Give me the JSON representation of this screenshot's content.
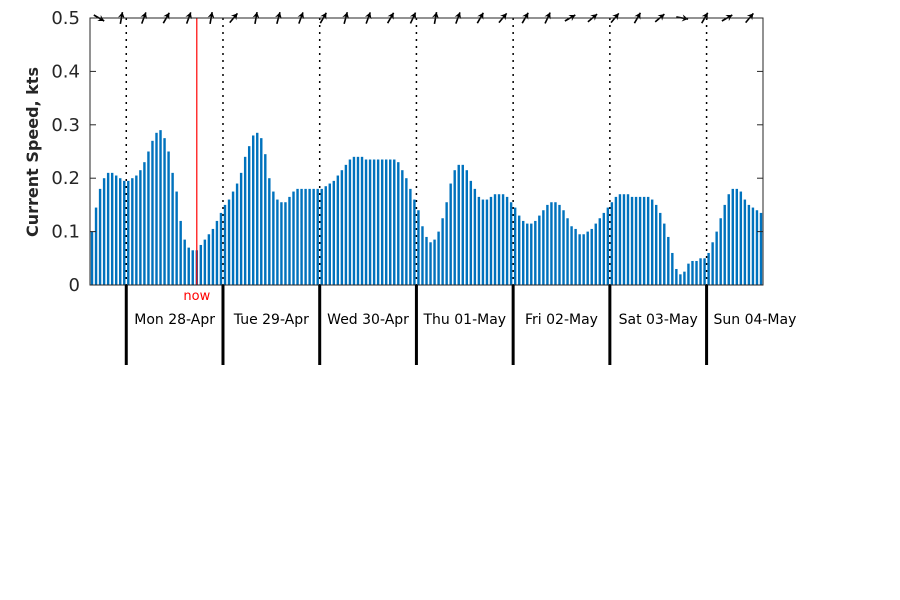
{
  "chart_data": {
    "type": "bar",
    "title": "",
    "xlabel": "",
    "ylabel": "Current Speed, kts",
    "ylim": [
      0,
      0.5
    ],
    "yticks": [
      0,
      0.1,
      0.2,
      0.3,
      0.4,
      0.5
    ],
    "ytick_labels": [
      "0",
      "0.1",
      "0.2",
      "0.3",
      "0.4",
      "0.5"
    ],
    "bar_color": "#0072BD",
    "now_color": "#ff0000",
    "samples_per_day": 24,
    "start_offset_samples": 9,
    "day_labels": [
      "Mon 28-Apr",
      "Tue 29-Apr",
      "Wed 30-Apr",
      "Thu 01-May",
      "Fri 02-May",
      "Sat 03-May",
      "Sun 04-May"
    ],
    "now_label": "now",
    "now_sample": 26.5,
    "direction_arrows_deg": [
      30,
      280,
      290,
      300,
      290,
      280,
      310,
      280,
      285,
      290,
      300,
      285,
      290,
      300,
      295,
      280,
      290,
      300,
      310,
      300,
      295,
      330,
      320,
      310,
      300,
      320,
      10,
      300,
      330,
      310
    ],
    "values": [
      0.1,
      0.145,
      0.18,
      0.2,
      0.21,
      0.21,
      0.205,
      0.2,
      0.195,
      0.195,
      0.2,
      0.205,
      0.215,
      0.23,
      0.25,
      0.27,
      0.285,
      0.29,
      0.275,
      0.25,
      0.21,
      0.175,
      0.12,
      0.085,
      0.07,
      0.065,
      0.065,
      0.075,
      0.085,
      0.095,
      0.105,
      0.12,
      0.135,
      0.15,
      0.16,
      0.175,
      0.19,
      0.21,
      0.24,
      0.26,
      0.28,
      0.285,
      0.275,
      0.245,
      0.2,
      0.175,
      0.16,
      0.155,
      0.155,
      0.165,
      0.175,
      0.18,
      0.18,
      0.18,
      0.18,
      0.18,
      0.18,
      0.18,
      0.185,
      0.19,
      0.195,
      0.205,
      0.215,
      0.225,
      0.235,
      0.24,
      0.24,
      0.24,
      0.235,
      0.235,
      0.235,
      0.235,
      0.235,
      0.235,
      0.235,
      0.235,
      0.23,
      0.215,
      0.2,
      0.18,
      0.16,
      0.14,
      0.11,
      0.09,
      0.08,
      0.085,
      0.1,
      0.125,
      0.155,
      0.19,
      0.215,
      0.225,
      0.225,
      0.215,
      0.195,
      0.18,
      0.165,
      0.16,
      0.16,
      0.165,
      0.17,
      0.17,
      0.17,
      0.165,
      0.155,
      0.145,
      0.13,
      0.12,
      0.115,
      0.115,
      0.12,
      0.13,
      0.14,
      0.15,
      0.155,
      0.155,
      0.15,
      0.14,
      0.125,
      0.11,
      0.105,
      0.095,
      0.095,
      0.1,
      0.105,
      0.115,
      0.125,
      0.135,
      0.145,
      0.155,
      0.165,
      0.17,
      0.17,
      0.17,
      0.165,
      0.165,
      0.165,
      0.165,
      0.165,
      0.16,
      0.15,
      0.135,
      0.115,
      0.09,
      0.06,
      0.03,
      0.02,
      0.025,
      0.04,
      0.045,
      0.045,
      0.05,
      0.05,
      0.06,
      0.08,
      0.1,
      0.125,
      0.15,
      0.17,
      0.18,
      0.18,
      0.175,
      0.16,
      0.15,
      0.145,
      0.14,
      0.135
    ]
  }
}
